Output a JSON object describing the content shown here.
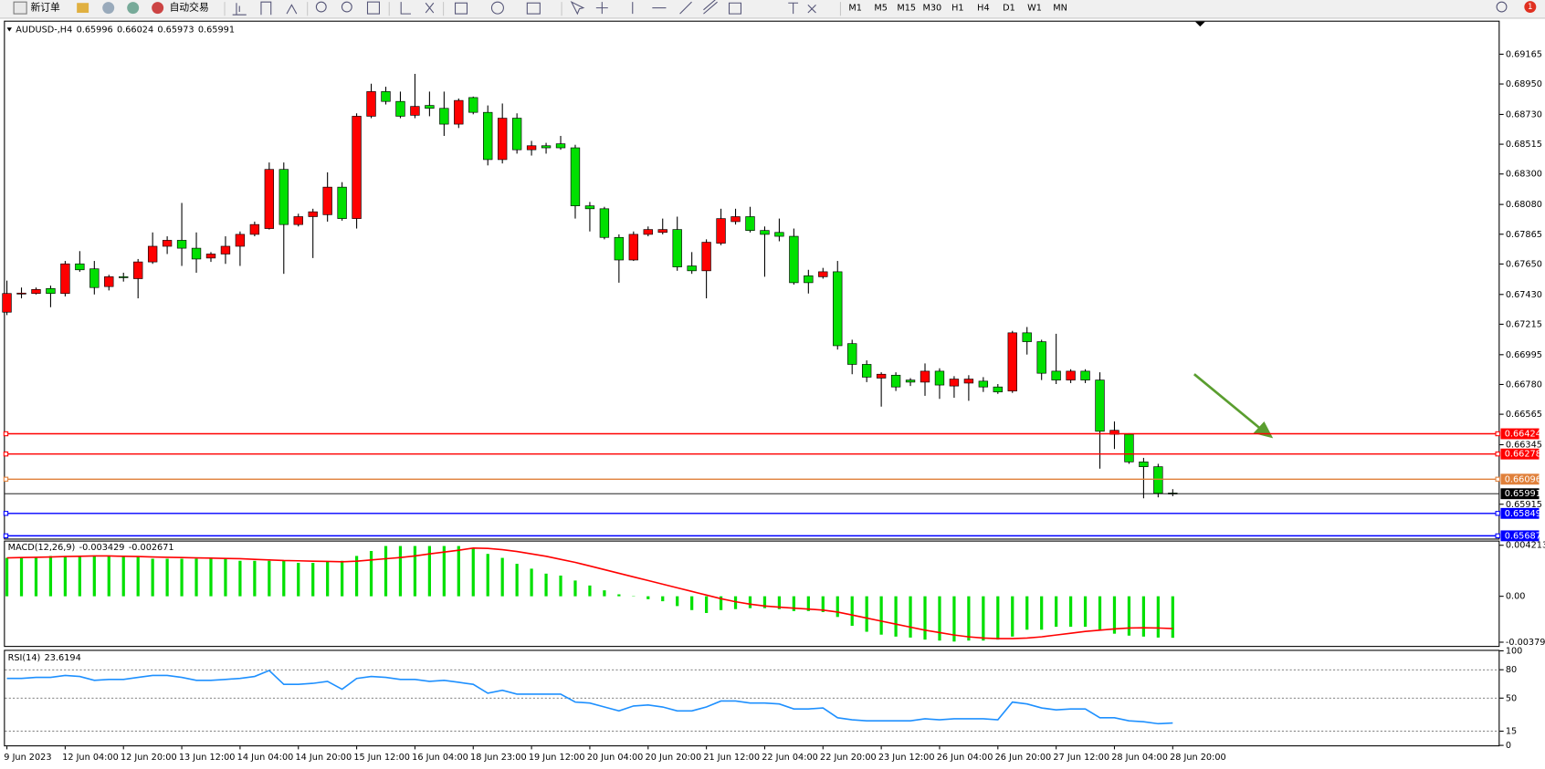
{
  "toolbar": {
    "new_order": "新订单",
    "auto_trading": "自动交易",
    "timeframes": [
      "M1",
      "M5",
      "M15",
      "M30",
      "H1",
      "H4",
      "D1",
      "W1",
      "MN"
    ],
    "notification_count": 1
  },
  "chart_data": [
    {
      "type": "candlestick",
      "title": "AUDUSD-,H4",
      "categories": [
        "9 Jun 2023",
        null,
        null,
        null,
        "12 Jun 04:00",
        null,
        null,
        null,
        "12 Jun 20:00",
        null,
        null,
        null,
        "13 Jun 12:00",
        null,
        null,
        null,
        "14 Jun 04:00",
        null,
        null,
        null,
        "14 Jun 20:00",
        null,
        null,
        null,
        "15 Jun 12:00",
        null,
        null,
        null,
        "16 Jun 04:00",
        null,
        null,
        null,
        "18 Jun 23:00",
        null,
        null,
        null,
        "19 Jun 12:00",
        null,
        null,
        null,
        "20 Jun 04:00",
        null,
        null,
        null,
        "20 Jun 20:00",
        null,
        null,
        null,
        "21 Jun 12:00",
        null,
        null,
        null,
        "22 Jun 04:00",
        null,
        null,
        null,
        "22 Jun 20:00",
        null,
        null,
        null,
        "23 Jun 12:00",
        null,
        null,
        null,
        "26 Jun 04:00",
        null,
        null,
        null,
        "26 Jun 20:00",
        null,
        null,
        null,
        "27 Jun 12:00",
        null,
        null,
        null,
        "28 Jun 04:00",
        null,
        null,
        null,
        "28 Jun 20:00"
      ],
      "open": [
        0.67302,
        0.67437,
        0.67437,
        0.67473,
        0.67437,
        0.67651,
        0.67615,
        0.67487,
        0.67558,
        0.67544,
        0.67665,
        0.67778,
        0.67821,
        0.67764,
        0.67693,
        0.67722,
        0.67778,
        0.67864,
        0.67906,
        0.68333,
        0.67935,
        0.67992,
        0.68006,
        0.68205,
        0.67978,
        0.68717,
        0.68895,
        0.68824,
        0.68724,
        0.68795,
        0.68774,
        0.6866,
        0.68852,
        0.68745,
        0.68404,
        0.68703,
        0.68475,
        0.68504,
        0.68518,
        0.68489,
        0.6807,
        0.68049,
        0.67842,
        0.67679,
        0.67864,
        0.67878,
        0.67899,
        0.67636,
        0.67601,
        0.678,
        0.67956,
        0.67992,
        0.67892,
        0.67878,
        0.6785,
        0.67565,
        0.67558,
        0.67594,
        0.67075,
        0.66925,
        0.66826,
        0.66847,
        0.66812,
        0.66797,
        0.66876,
        0.66769,
        0.6679,
        0.66804,
        0.66762,
        0.66733,
        0.67153,
        0.67089,
        0.66876,
        0.66812,
        0.66876,
        0.66812,
        0.6642,
        0.6642,
        0.66221,
        0.66186,
        0.65996
      ],
      "high": [
        0.6753,
        0.6748,
        0.6748,
        0.67494,
        0.67672,
        0.67743,
        0.67672,
        0.67572,
        0.67587,
        0.67686,
        0.67878,
        0.6785,
        0.68091,
        0.67878,
        0.67736,
        0.6785,
        0.67885,
        0.67956,
        0.68383,
        0.68383,
        0.68013,
        0.68049,
        0.68312,
        0.68241,
        0.68738,
        0.68952,
        0.6893,
        0.68895,
        0.69023,
        0.68895,
        0.68895,
        0.68845,
        0.68859,
        0.68795,
        0.68809,
        0.68738,
        0.68539,
        0.68525,
        0.68575,
        0.68511,
        0.68098,
        0.68063,
        0.67864,
        0.67885,
        0.67921,
        0.67978,
        0.67992,
        0.67736,
        0.67828,
        0.68049,
        0.68049,
        0.68063,
        0.67921,
        0.67978,
        0.67906,
        0.67608,
        0.67622,
        0.67672,
        0.67103,
        0.66954,
        0.66868,
        0.66868,
        0.66826,
        0.66932,
        0.66897,
        0.6684,
        0.66847,
        0.66833,
        0.66783,
        0.67167,
        0.67195,
        0.67103,
        0.67146,
        0.6689,
        0.6689,
        0.66868,
        0.66513,
        0.66428,
        0.6625,
        0.66207,
        0.66024
      ],
      "low": [
        0.67281,
        0.67402,
        0.6743,
        0.67338,
        0.67416,
        0.67594,
        0.6743,
        0.67459,
        0.67523,
        0.67402,
        0.67651,
        0.67722,
        0.67636,
        0.67587,
        0.67665,
        0.67651,
        0.67636,
        0.6785,
        0.67899,
        0.67579,
        0.67921,
        0.67693,
        0.67956,
        0.67963,
        0.67906,
        0.68703,
        0.68802,
        0.68703,
        0.68703,
        0.68717,
        0.68575,
        0.68632,
        0.68731,
        0.68362,
        0.68376,
        0.68447,
        0.68433,
        0.68447,
        0.68475,
        0.67978,
        0.67885,
        0.67828,
        0.67515,
        0.67672,
        0.6785,
        0.67864,
        0.67601,
        0.67579,
        0.67402,
        0.67786,
        0.67935,
        0.67878,
        0.67558,
        0.67814,
        0.67501,
        0.67437,
        0.67544,
        0.67032,
        0.66854,
        0.66797,
        0.6662,
        0.66733,
        0.66769,
        0.66698,
        0.66676,
        0.66684,
        0.66662,
        0.66726,
        0.66712,
        0.66719,
        0.66996,
        0.66812,
        0.66783,
        0.6679,
        0.6679,
        0.66172,
        0.66314,
        0.66207,
        0.65958,
        0.65965,
        0.65973
      ],
      "close": [
        0.67437,
        0.6744,
        0.67466,
        0.67437,
        0.67651,
        0.67608,
        0.6748,
        0.67558,
        0.67555,
        0.67665,
        0.67778,
        0.67821,
        0.67764,
        0.67686,
        0.67722,
        0.67778,
        0.67864,
        0.67935,
        0.68333,
        0.67935,
        0.67992,
        0.68027,
        0.68205,
        0.67978,
        0.68717,
        0.68895,
        0.68824,
        0.68717,
        0.68788,
        0.68774,
        0.6866,
        0.68831,
        0.68745,
        0.68404,
        0.68703,
        0.68475,
        0.68504,
        0.68489,
        0.68489,
        0.6807,
        0.68049,
        0.67842,
        0.67679,
        0.67864,
        0.67899,
        0.67899,
        0.67629,
        0.67601,
        0.67807,
        0.67978,
        0.67992,
        0.67892,
        0.67864,
        0.6785,
        0.67515,
        0.67515,
        0.67594,
        0.6706,
        0.66925,
        0.66833,
        0.66854,
        0.66762,
        0.66797,
        0.66876,
        0.66776,
        0.66819,
        0.66819,
        0.66762,
        0.66726,
        0.67153,
        0.67089,
        0.66861,
        0.66812,
        0.66876,
        0.66812,
        0.66442,
        0.66449,
        0.66221,
        0.66186,
        0.65994,
        0.65991
      ],
      "up_color": "#ff0000",
      "down_color": "#00e000",
      "ylim": [
        0.65667,
        0.694
      ],
      "yticks": [
        0.69165,
        {
          "value": 0.6895,
          "label": "0.68950"
        },
        {
          "value": 0.6873,
          "label": "0.68730"
        },
        0.68515,
        {
          "value": 0.683,
          "label": "0.68300"
        },
        {
          "value": 0.6808,
          "label": "0.68080"
        },
        0.67865,
        {
          "value": 0.6765,
          "label": "0.67650"
        },
        {
          "value": 0.6743,
          "label": "0.67430"
        },
        0.67215,
        0.66995,
        {
          "value": 0.6678,
          "label": "0.66780"
        },
        0.66565,
        0.66345,
        0.65915
      ],
      "hlines": [
        {
          "value": 0.66424,
          "color": "#ff0000"
        },
        {
          "value": 0.66278,
          "color": "#ff0000"
        },
        {
          "value": 0.66096,
          "color": "#e0803a"
        },
        {
          "value": 0.65849,
          "color": "#0000ff"
        },
        {
          "value": 0.65687,
          "color": "#0000ff"
        }
      ]
    },
    {
      "type": "macd",
      "title": "MACD(12,26,9)",
      "values": [
        0.00317,
        0.00317,
        0.00317,
        0.00333,
        0.00333,
        0.00333,
        0.00333,
        0.00333,
        0.00333,
        0.00333,
        0.0031,
        0.0031,
        0.0031,
        0.0031,
        0.0031,
        0.0031,
        0.00293,
        0.00293,
        0.00293,
        0.00293,
        0.00276,
        0.00276,
        0.00285,
        0.00293,
        0.00333,
        0.00374,
        0.00415,
        0.00415,
        0.00415,
        0.00415,
        0.00415,
        0.00415,
        0.00398,
        0.0035,
        0.00317,
        0.00268,
        0.00228,
        0.00187,
        0.00171,
        0.0013,
        0.00089,
        0.00049,
        0.00016,
        -3e-05,
        -0.00024,
        -0.00041,
        -0.00081,
        -0.00114,
        -0.00138,
        -0.00114,
        -0.00106,
        -0.00098,
        -0.00098,
        -0.00106,
        -0.00122,
        -0.00122,
        -0.0013,
        -0.00171,
        -0.00244,
        -0.00293,
        -0.00317,
        -0.00333,
        -0.00341,
        -0.00358,
        -0.00366,
        -0.00374,
        -0.00366,
        -0.00366,
        -0.00358,
        -0.00333,
        -0.00276,
        -0.00276,
        -0.00252,
        -0.00252,
        -0.00252,
        -0.00285,
        -0.00309,
        -0.00325,
        -0.00333,
        -0.00341,
        -0.003429
      ],
      "signal": [
        0.00317,
        0.0032,
        0.00322,
        0.00325,
        0.00328,
        0.0033,
        0.00333,
        0.00333,
        0.0033,
        0.00328,
        0.00325,
        0.00322,
        0.0032,
        0.00317,
        0.00315,
        0.00312,
        0.0031,
        0.00305,
        0.003,
        0.00295,
        0.00293,
        0.0029,
        0.00288,
        0.00285,
        0.0029,
        0.003,
        0.0031,
        0.0032,
        0.00333,
        0.0035,
        0.00365,
        0.0038,
        0.00398,
        0.00395,
        0.00385,
        0.0037,
        0.0035,
        0.0033,
        0.00305,
        0.0028,
        0.0025,
        0.0022,
        0.0019,
        0.0016,
        0.0013,
        0.001,
        0.0007,
        0.0004,
        0.0001,
        -0.0002,
        -0.00045,
        -0.00065,
        -0.0008,
        -0.0009,
        -0.00098,
        -0.00106,
        -0.00114,
        -0.0013,
        -0.00155,
        -0.0018,
        -0.00205,
        -0.0023,
        -0.00255,
        -0.0028,
        -0.003,
        -0.0032,
        -0.00335,
        -0.00345,
        -0.0035,
        -0.0035,
        -0.00345,
        -0.00335,
        -0.0032,
        -0.00305,
        -0.0029,
        -0.0028,
        -0.0027,
        -0.00262,
        -0.0026,
        -0.00262,
        -0.002671
      ],
      "color": "#00e000",
      "signal_color": "#ff0000",
      "ylim": [
        -0.0041,
        0.0046
      ],
      "yticks": [
        0.004213,
        {
          "value": 0,
          "label": "0.00"
        },
        -0.003792
      ]
    },
    {
      "type": "line",
      "title": "RSI(14)",
      "values": [
        70.8,
        70.8,
        71.9,
        71.9,
        74.0,
        72.9,
        68.8,
        69.8,
        69.8,
        71.9,
        74.0,
        74.0,
        71.9,
        68.8,
        68.8,
        69.8,
        70.8,
        72.9,
        79.2,
        64.6,
        64.6,
        65.6,
        67.7,
        59.4,
        70.8,
        72.9,
        71.9,
        69.8,
        69.8,
        67.7,
        68.8,
        66.7,
        64.6,
        55.2,
        58.3,
        54.2,
        54.2,
        54.2,
        54.2,
        45.8,
        44.8,
        40.6,
        36.5,
        41.7,
        42.7,
        40.6,
        36.5,
        36.5,
        40.6,
        46.9,
        46.9,
        44.8,
        44.8,
        43.8,
        38.5,
        38.5,
        39.6,
        29.2,
        27.1,
        26.0,
        26.0,
        26.0,
        26.0,
        28.1,
        27.1,
        28.1,
        28.1,
        28.1,
        27.1,
        45.8,
        43.8,
        39.6,
        37.5,
        38.5,
        38.5,
        29.2,
        29.2,
        26.0,
        25.0,
        22.9,
        23.6194
      ],
      "color": "#1e90ff",
      "ylim": [
        0,
        100
      ],
      "yticks": [
        100,
        80,
        50,
        15,
        0
      ],
      "grid": true
    }
  ]
}
